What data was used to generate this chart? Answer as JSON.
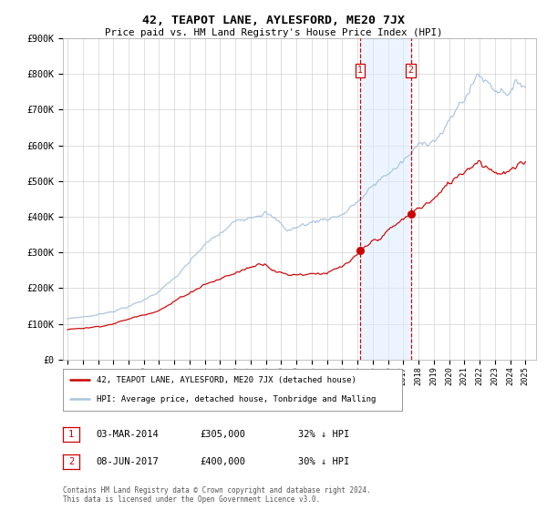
{
  "title": "42, TEAPOT LANE, AYLESFORD, ME20 7JX",
  "subtitle": "Price paid vs. HM Land Registry's House Price Index (HPI)",
  "background_color": "#ffffff",
  "plot_bg_color": "#ffffff",
  "grid_color": "#cccccc",
  "hpi_color": "#aac4e0",
  "price_color": "#cc0000",
  "idx1": 230,
  "idx2": 270,
  "point1_value": 305000,
  "point2_value": 400000,
  "annotation1_label": "1",
  "annotation1_date": "03-MAR-2014",
  "annotation1_price": "£305,000",
  "annotation1_note": "32% ↓ HPI",
  "annotation2_label": "2",
  "annotation2_date": "08-JUN-2017",
  "annotation2_price": "£400,000",
  "annotation2_note": "30% ↓ HPI",
  "legend_line1": "42, TEAPOT LANE, AYLESFORD, ME20 7JX (detached house)",
  "legend_line2": "HPI: Average price, detached house, Tonbridge and Malling",
  "footnote": "Contains HM Land Registry data © Crown copyright and database right 2024.\nThis data is licensed under the Open Government Licence v3.0.",
  "ylim": [
    0,
    900000
  ],
  "ytick_labels": [
    "£0",
    "£100K",
    "£200K",
    "£300K",
    "£400K",
    "£500K",
    "£600K",
    "£700K",
    "£800K",
    "£900K"
  ],
  "ytick_values": [
    0,
    100000,
    200000,
    300000,
    400000,
    500000,
    600000,
    700000,
    800000,
    900000
  ],
  "n_months": 361,
  "start_year": 1995
}
